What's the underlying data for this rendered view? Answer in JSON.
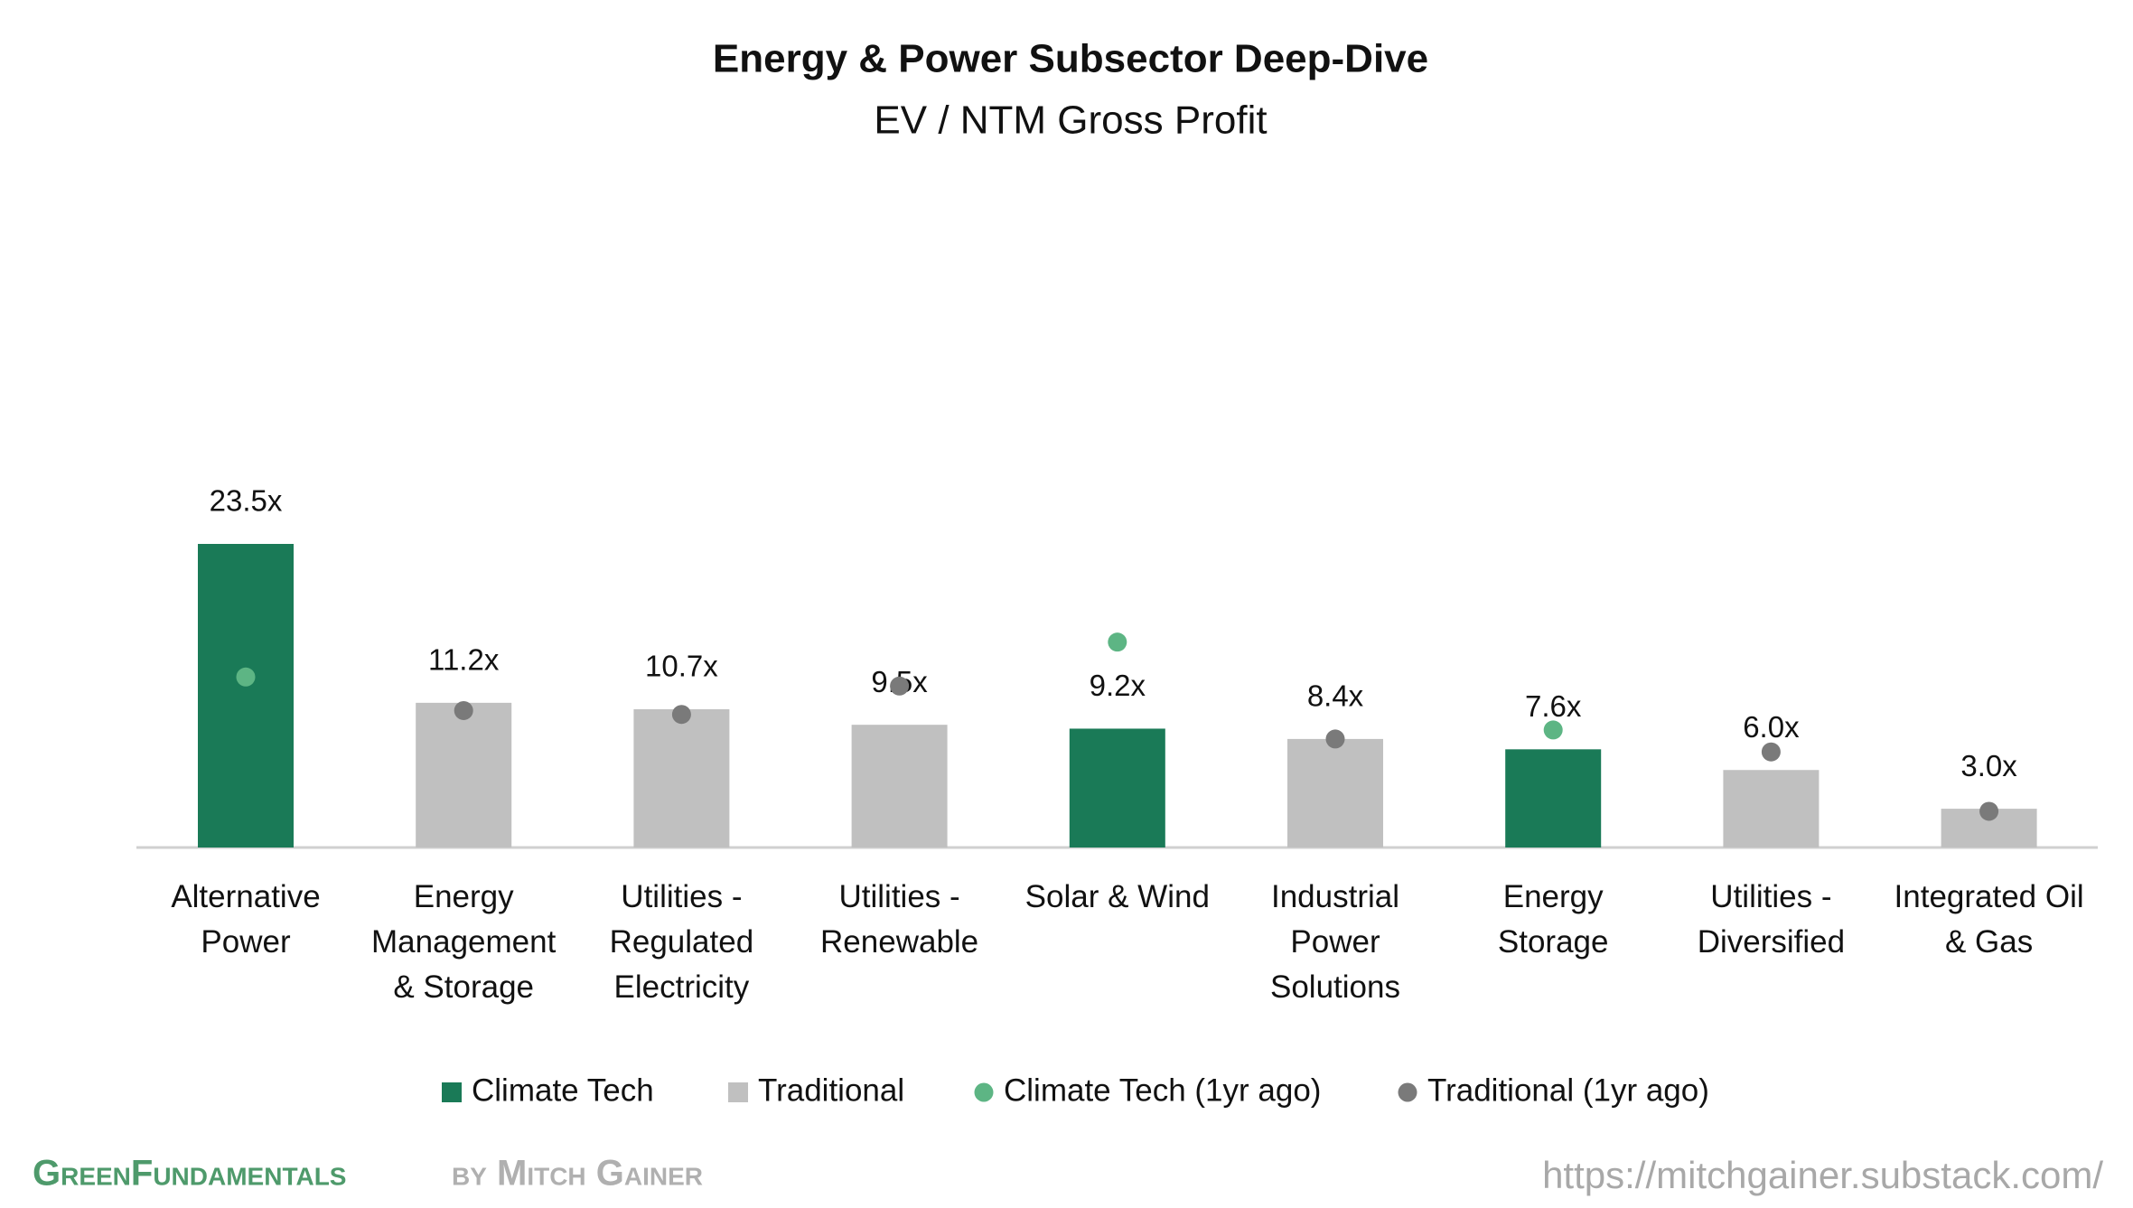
{
  "chart_data": {
    "type": "bar",
    "title": "Energy & Power Subsector Deep-Dive",
    "subtitle": "EV / NTM Gross Profit",
    "categories": [
      "Alternative\nPower",
      "Energy\nManagement\n& Storage",
      "Utilities -\nRegulated\nElectricity",
      "Utilities -\nRenewable",
      "Solar & Wind",
      "Industrial\nPower\nSolutions",
      "Energy\nStorage",
      "Utilities -\nDiversified",
      "Integrated Oil\n& Gas"
    ],
    "series": [
      {
        "name": "Climate Tech",
        "type": "bar",
        "color": "#1a7a57",
        "values": [
          23.5,
          null,
          null,
          null,
          9.2,
          null,
          7.6,
          null,
          null
        ],
        "value_labels": [
          "23.5x",
          null,
          null,
          null,
          "9.2x",
          null,
          "7.6x",
          null,
          null
        ]
      },
      {
        "name": "Traditional",
        "type": "bar",
        "color": "#c0c0c0",
        "values": [
          null,
          11.2,
          10.7,
          9.5,
          null,
          8.4,
          null,
          6.0,
          3.0
        ],
        "value_labels": [
          null,
          "11.2x",
          "10.7x",
          "9.5x",
          null,
          "8.4x",
          null,
          "6.0x",
          "3.0x"
        ]
      },
      {
        "name": "Climate Tech (1yr ago)",
        "type": "scatter",
        "color": "#5db584",
        "values": [
          13.2,
          null,
          null,
          null,
          15.9,
          null,
          9.1,
          null,
          null
        ]
      },
      {
        "name": "Traditional (1yr ago)",
        "type": "scatter",
        "color": "#7a7a7a",
        "values": [
          null,
          10.6,
          10.3,
          12.5,
          null,
          8.4,
          null,
          7.4,
          2.8
        ]
      }
    ]
  },
  "footer": {
    "brand": "GreenFundamentals",
    "byline": "by Mitch Gainer",
    "url": "https://mitchgainer.substack.com/"
  }
}
